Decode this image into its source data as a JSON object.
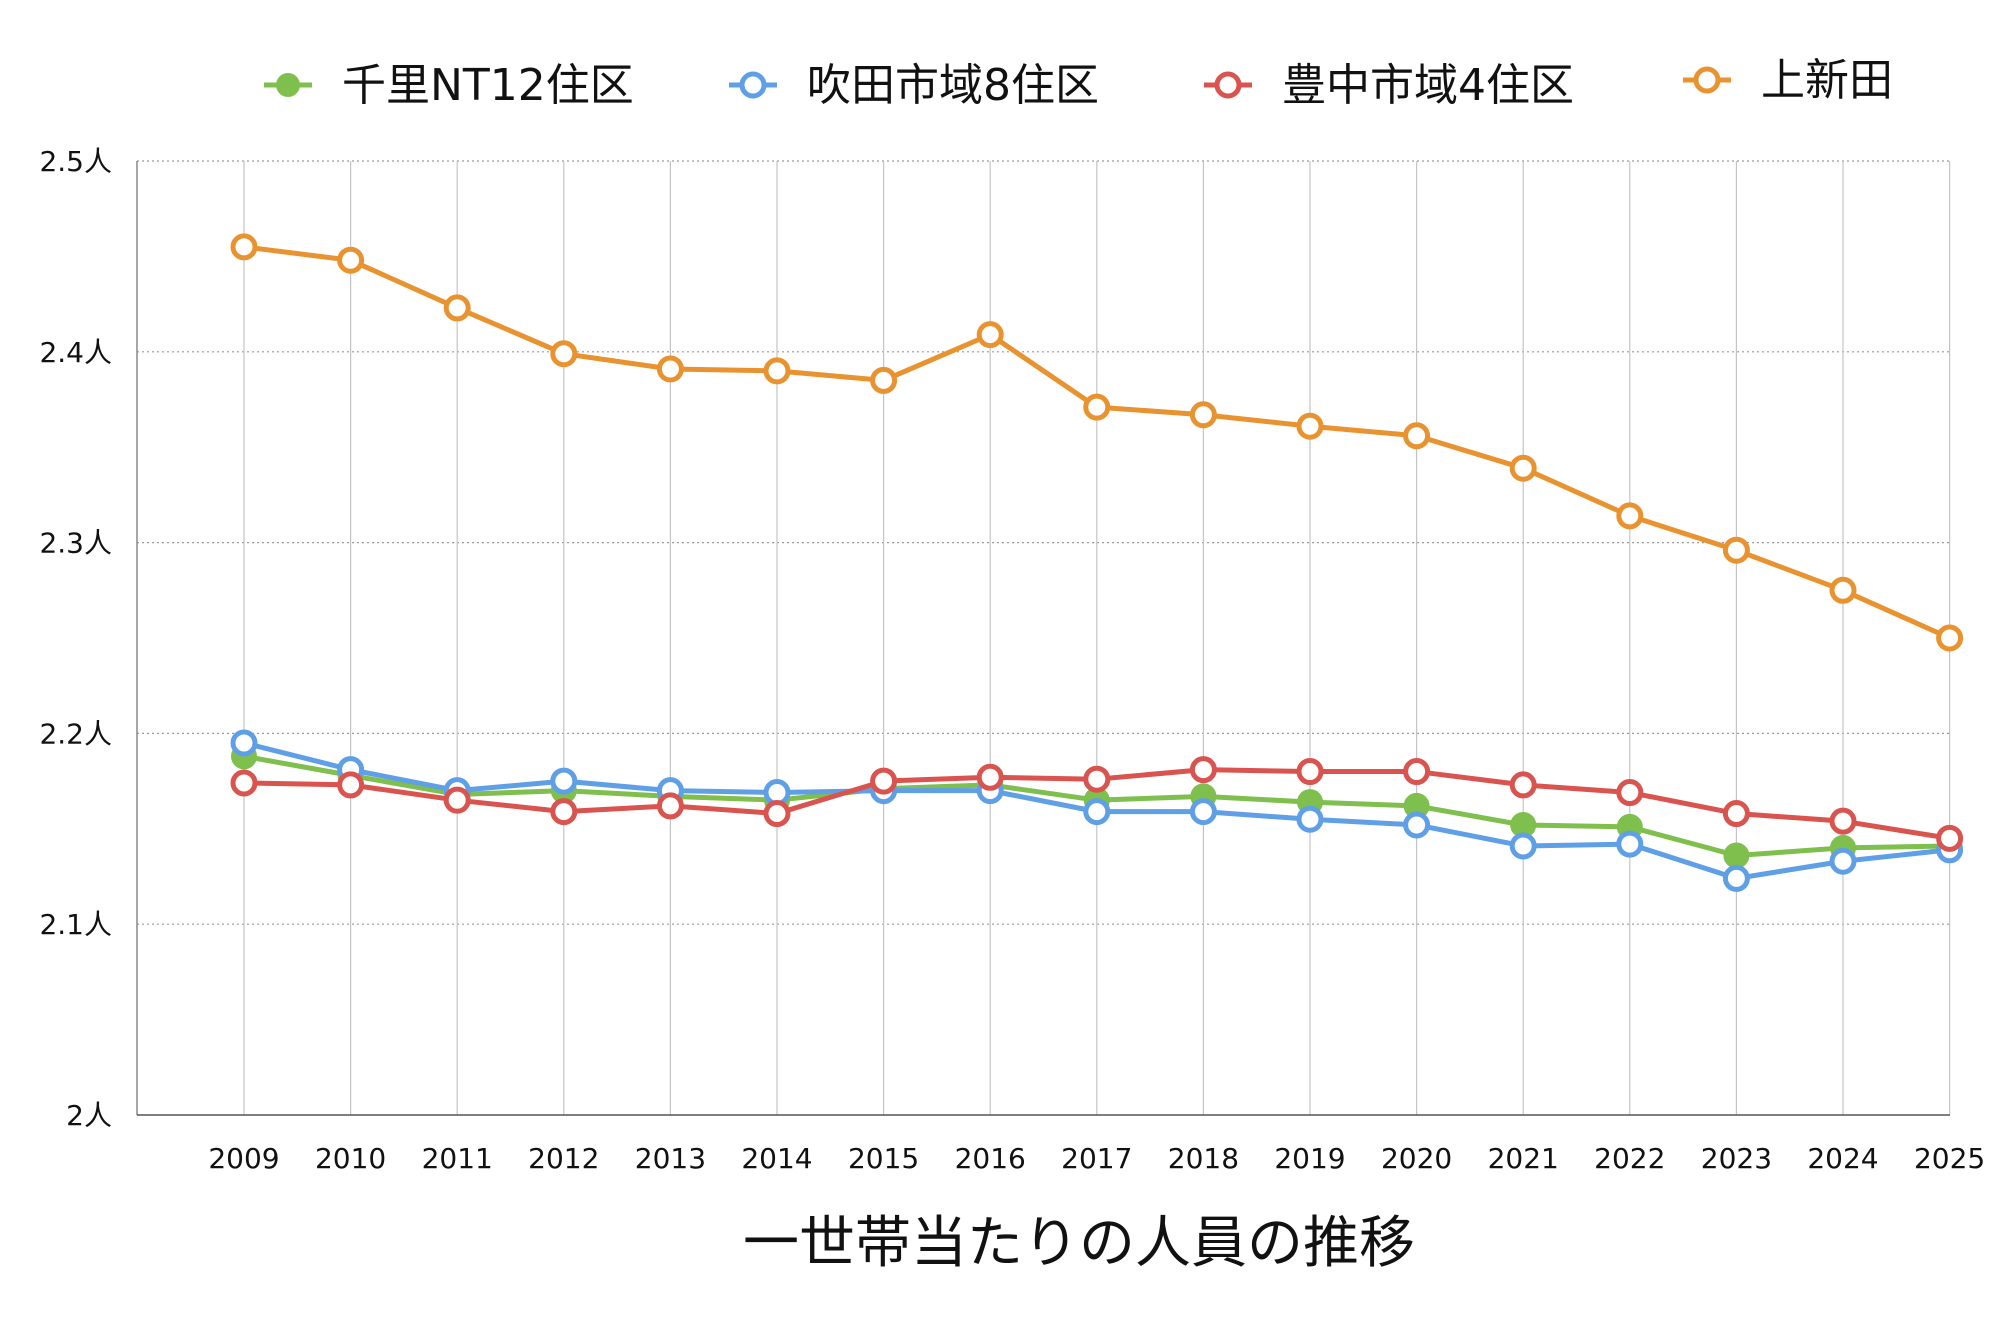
{
  "chart_data": {
    "type": "line",
    "title": "一世帯当たりの人員の推移",
    "x": [
      "2009",
      "2010",
      "2011",
      "2012",
      "2013",
      "2014",
      "2015",
      "2016",
      "2017",
      "2018",
      "2019",
      "2020",
      "2021",
      "2022",
      "2023",
      "2024",
      "2025"
    ],
    "y_ticks": [
      "2人",
      "2.1人",
      "2.2人",
      "2.3人",
      "2.4人",
      "2.5人"
    ],
    "ylim": [
      2.0,
      2.5
    ],
    "grid": true,
    "legend_position": "top",
    "series": [
      {
        "name": "千里NT12住区",
        "color": "#7fbf4d",
        "marker": "filled",
        "values": [
          2.188,
          2.178,
          2.168,
          2.17,
          2.167,
          2.165,
          2.171,
          2.173,
          2.165,
          2.167,
          2.164,
          2.162,
          2.152,
          2.151,
          2.136,
          2.14,
          2.141
        ]
      },
      {
        "name": "吹田市域8住区",
        "color": "#5f9fe6",
        "marker": "hollow",
        "values": [
          2.195,
          2.181,
          2.17,
          2.175,
          2.17,
          2.169,
          2.17,
          2.17,
          2.159,
          2.159,
          2.155,
          2.152,
          2.141,
          2.142,
          2.124,
          2.133,
          2.139
        ]
      },
      {
        "name": "豊中市域4住区",
        "color": "#d9534f",
        "marker": "hollow",
        "values": [
          2.174,
          2.173,
          2.165,
          2.159,
          2.162,
          2.158,
          2.175,
          2.177,
          2.176,
          2.181,
          2.18,
          2.18,
          2.173,
          2.169,
          2.158,
          2.154,
          2.145
        ]
      },
      {
        "name": "上新田",
        "color": "#e8932f",
        "marker": "hollow",
        "values": [
          2.455,
          2.448,
          2.423,
          2.399,
          2.391,
          2.39,
          2.385,
          2.409,
          2.371,
          2.367,
          2.361,
          2.356,
          2.339,
          2.314,
          2.296,
          2.275,
          2.25
        ]
      }
    ]
  }
}
